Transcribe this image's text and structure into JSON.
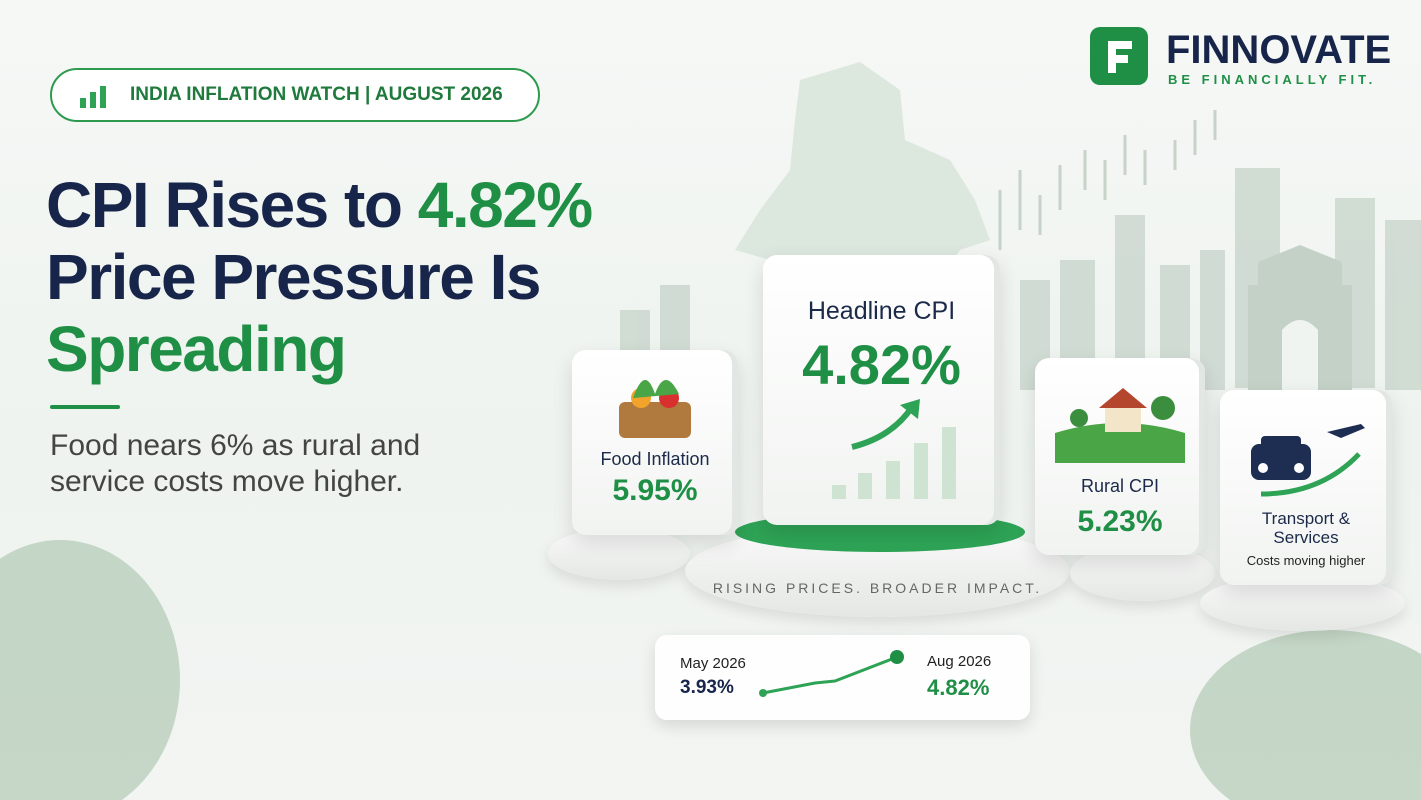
{
  "brand": {
    "name": "FINNOVATE",
    "tagline": "BE FINANCIALLY FIT."
  },
  "badge": "INDIA INFLATION WATCH | AUGUST 2026",
  "headline": {
    "line1": "CPI Rises to",
    "highlight": "4.82%",
    "line2": "Price Pressure Is",
    "line3": "Spreading"
  },
  "subtitle": {
    "line1": "Food nears 6% as rural and",
    "line2": "service costs move higher."
  },
  "cards": [
    {
      "label": "Food Inflation",
      "value": "5.95%"
    },
    {
      "label": "Headline CPI",
      "value": "4.82%"
    },
    {
      "label": "Rural CPI",
      "value": "5.23%"
    },
    {
      "label": "Transport & Services",
      "note": "Costs moving higher"
    }
  ],
  "podium_caption": "RISING PRICES. BROADER IMPACT.",
  "trend": {
    "start_label": "May 2026",
    "start_value": "3.93%",
    "end_label": "Aug 2026",
    "end_value": "4.82%"
  }
}
